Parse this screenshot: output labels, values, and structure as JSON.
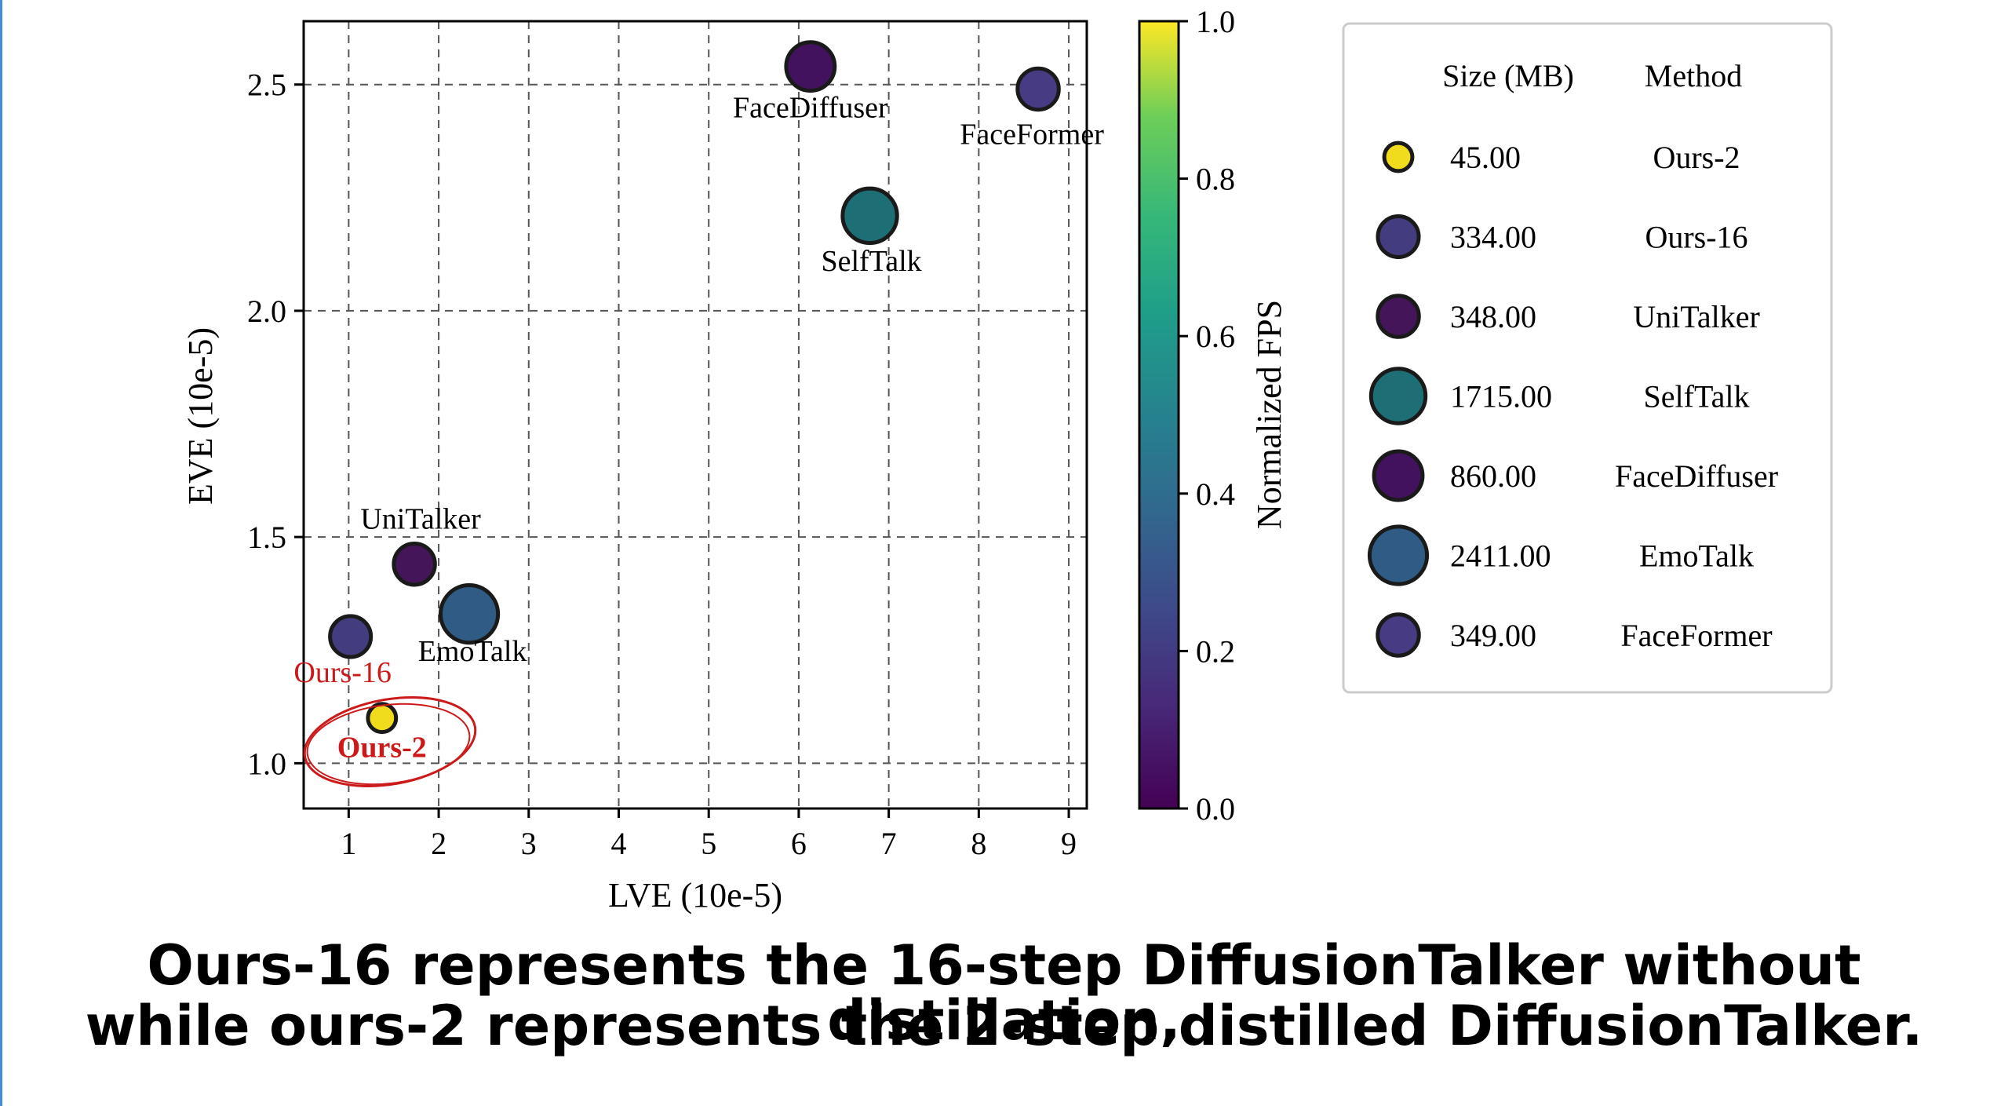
{
  "colors": {
    "ours2": "#f0dc1c",
    "ours16": "#433d7f",
    "unitalker": "#441659",
    "selftalk": "#1e6f75",
    "facediffuser": "#43125e",
    "emotalk": "#2f5b84",
    "faceformer": "#473b83",
    "highlight": "#cc1a1a",
    "axis_scale": "viridis"
  },
  "chart_data": {
    "type": "scatter",
    "xlabel": "LVE (10e-5)",
    "ylabel": "EVE (10e-5)",
    "xlim": [
      0.5,
      9.2
    ],
    "ylim": [
      0.9,
      2.64
    ],
    "xticks": [
      "1",
      "2",
      "3",
      "4",
      "5",
      "6",
      "7",
      "8",
      "9"
    ],
    "yticks": [
      "1.0",
      "1.5",
      "2.0",
      "2.5"
    ],
    "grid": true,
    "colorbar": {
      "label": "Normalized FPS",
      "ticks": [
        "0.0",
        "0.2",
        "0.4",
        "0.6",
        "0.8",
        "1.0"
      ]
    },
    "points": [
      {
        "method": "Ours-2",
        "lve": 1.37,
        "eve": 1.1,
        "size_mb": 45.0,
        "color": "#f0dc1c"
      },
      {
        "method": "Ours-16",
        "lve": 1.02,
        "eve": 1.28,
        "size_mb": 334.0,
        "color": "#433d7f"
      },
      {
        "method": "UniTalker",
        "lve": 1.73,
        "eve": 1.44,
        "size_mb": 348.0,
        "color": "#441659"
      },
      {
        "method": "EmoTalk",
        "lve": 2.34,
        "eve": 1.33,
        "size_mb": 2411.0,
        "color": "#2f5b84"
      },
      {
        "method": "FaceDiffuser",
        "lve": 6.13,
        "eve": 2.54,
        "size_mb": 860.0,
        "color": "#43125e"
      },
      {
        "method": "SelfTalk",
        "lve": 6.79,
        "eve": 2.21,
        "size_mb": 1715.0,
        "color": "#1e6f75"
      },
      {
        "method": "FaceFormer",
        "lve": 8.66,
        "eve": 2.49,
        "size_mb": 349.0,
        "color": "#473b83"
      }
    ],
    "legend": {
      "position": "right",
      "size_header": "Size (MB)",
      "method_header": "Method",
      "entries": [
        {
          "size": "45.00",
          "method": "Ours-2",
          "color": "#f0dc1c"
        },
        {
          "size": "334.00",
          "method": "Ours-16",
          "color": "#433d7f"
        },
        {
          "size": "348.00",
          "method": "UniTalker",
          "color": "#441659"
        },
        {
          "size": "1715.00",
          "method": "SelfTalk",
          "color": "#1e6f75"
        },
        {
          "size": "860.00",
          "method": "FaceDiffuser",
          "color": "#43125e"
        },
        {
          "size": "2411.00",
          "method": "EmoTalk",
          "color": "#2f5b84"
        },
        {
          "size": "349.00",
          "method": "FaceFormer",
          "color": "#473b83"
        }
      ]
    }
  },
  "caption": {
    "line1": "Ours-16 represents the 16-step DiffusionTalker without distillation,",
    "line2": "while ours-2 represents the 2-step distilled DiffusionTalker."
  }
}
